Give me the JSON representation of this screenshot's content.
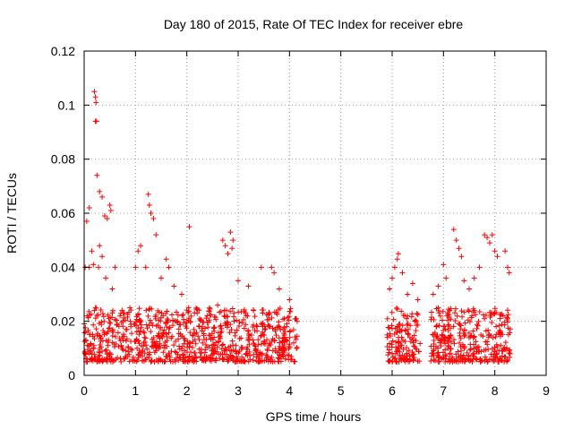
{
  "chart_data": {
    "type": "scatter",
    "title": "Day 180 of 2015, Rate Of TEC Index for receiver ebre",
    "xlabel": "GPS time / hours",
    "ylabel": "ROTI / TECUs",
    "xlim": [
      0,
      9
    ],
    "ylim": [
      0,
      0.12
    ],
    "xticks": [
      "0",
      "1",
      "2",
      "3",
      "4",
      "5",
      "6",
      "7",
      "8",
      "9"
    ],
    "yticks": [
      "0",
      "0.02",
      "0.04",
      "0.06",
      "0.08",
      "0.1",
      "0.12"
    ],
    "grid": true,
    "marker": "+",
    "series_color": "#ff0000",
    "coverage_segments": [
      [
        0.0,
        4.15
      ],
      [
        5.9,
        6.55
      ],
      [
        6.75,
        8.3
      ]
    ],
    "typical_band": [
      0.005,
      0.025
    ],
    "series": [
      {
        "name": "ROTI",
        "points": [
          [
            0.05,
            0.057
          ],
          [
            0.1,
            0.062
          ],
          [
            0.2,
            0.105
          ],
          [
            0.22,
            0.103
          ],
          [
            0.23,
            0.101
          ],
          [
            0.22,
            0.094
          ],
          [
            0.24,
            0.094
          ],
          [
            0.25,
            0.074
          ],
          [
            0.3,
            0.068
          ],
          [
            0.35,
            0.066
          ],
          [
            0.4,
            0.059
          ],
          [
            0.45,
            0.058
          ],
          [
            0.5,
            0.063
          ],
          [
            0.52,
            0.061
          ],
          [
            0.15,
            0.046
          ],
          [
            0.3,
            0.048
          ],
          [
            0.02,
            0.04
          ],
          [
            0.1,
            0.04
          ],
          [
            0.18,
            0.041
          ],
          [
            0.28,
            0.04
          ],
          [
            0.35,
            0.044
          ],
          [
            0.6,
            0.04
          ],
          [
            0.42,
            0.036
          ],
          [
            0.55,
            0.032
          ],
          [
            1.0,
            0.04
          ],
          [
            1.05,
            0.046
          ],
          [
            1.1,
            0.048
          ],
          [
            1.2,
            0.04
          ],
          [
            1.25,
            0.067
          ],
          [
            1.27,
            0.063
          ],
          [
            1.3,
            0.06
          ],
          [
            1.35,
            0.058
          ],
          [
            1.4,
            0.052
          ],
          [
            1.5,
            0.036
          ],
          [
            1.6,
            0.043
          ],
          [
            1.65,
            0.04
          ],
          [
            1.75,
            0.033
          ],
          [
            1.9,
            0.03
          ],
          [
            2.05,
            0.055
          ],
          [
            2.7,
            0.05
          ],
          [
            2.75,
            0.048
          ],
          [
            2.8,
            0.045
          ],
          [
            2.85,
            0.053
          ],
          [
            2.9,
            0.05
          ],
          [
            2.88,
            0.047
          ],
          [
            3.0,
            0.035
          ],
          [
            3.2,
            0.033
          ],
          [
            3.45,
            0.04
          ],
          [
            3.65,
            0.04
          ],
          [
            3.7,
            0.038
          ],
          [
            3.8,
            0.032
          ],
          [
            4.0,
            0.028
          ],
          [
            5.95,
            0.032
          ],
          [
            6.0,
            0.036
          ],
          [
            6.05,
            0.04
          ],
          [
            6.1,
            0.043
          ],
          [
            6.12,
            0.045
          ],
          [
            6.2,
            0.038
          ],
          [
            6.3,
            0.03
          ],
          [
            6.4,
            0.034
          ],
          [
            6.5,
            0.028
          ],
          [
            6.8,
            0.03
          ],
          [
            6.9,
            0.033
          ],
          [
            7.0,
            0.041
          ],
          [
            7.05,
            0.036
          ],
          [
            7.2,
            0.054
          ],
          [
            7.25,
            0.05
          ],
          [
            7.3,
            0.047
          ],
          [
            7.35,
            0.044
          ],
          [
            7.5,
            0.032
          ],
          [
            7.6,
            0.036
          ],
          [
            7.8,
            0.052
          ],
          [
            7.85,
            0.051
          ],
          [
            7.9,
            0.049
          ],
          [
            7.95,
            0.052
          ],
          [
            8.0,
            0.046
          ],
          [
            8.05,
            0.044
          ],
          [
            8.2,
            0.046
          ],
          [
            8.25,
            0.04
          ],
          [
            8.28,
            0.038
          ],
          [
            7.7,
            0.04
          ],
          [
            7.4,
            0.035
          ],
          [
            0.7,
            0.022
          ],
          [
            1.8,
            0.02
          ],
          [
            2.3,
            0.018
          ],
          [
            3.3,
            0.024
          ],
          [
            6.3,
            0.022
          ],
          [
            7.6,
            0.024
          ],
          [
            8.1,
            0.021
          ],
          [
            0.2,
            0.024
          ],
          [
            0.9,
            0.02
          ],
          [
            2.6,
            0.026
          ],
          [
            3.9,
            0.021
          ],
          [
            6.9,
            0.025
          ]
        ]
      }
    ]
  }
}
